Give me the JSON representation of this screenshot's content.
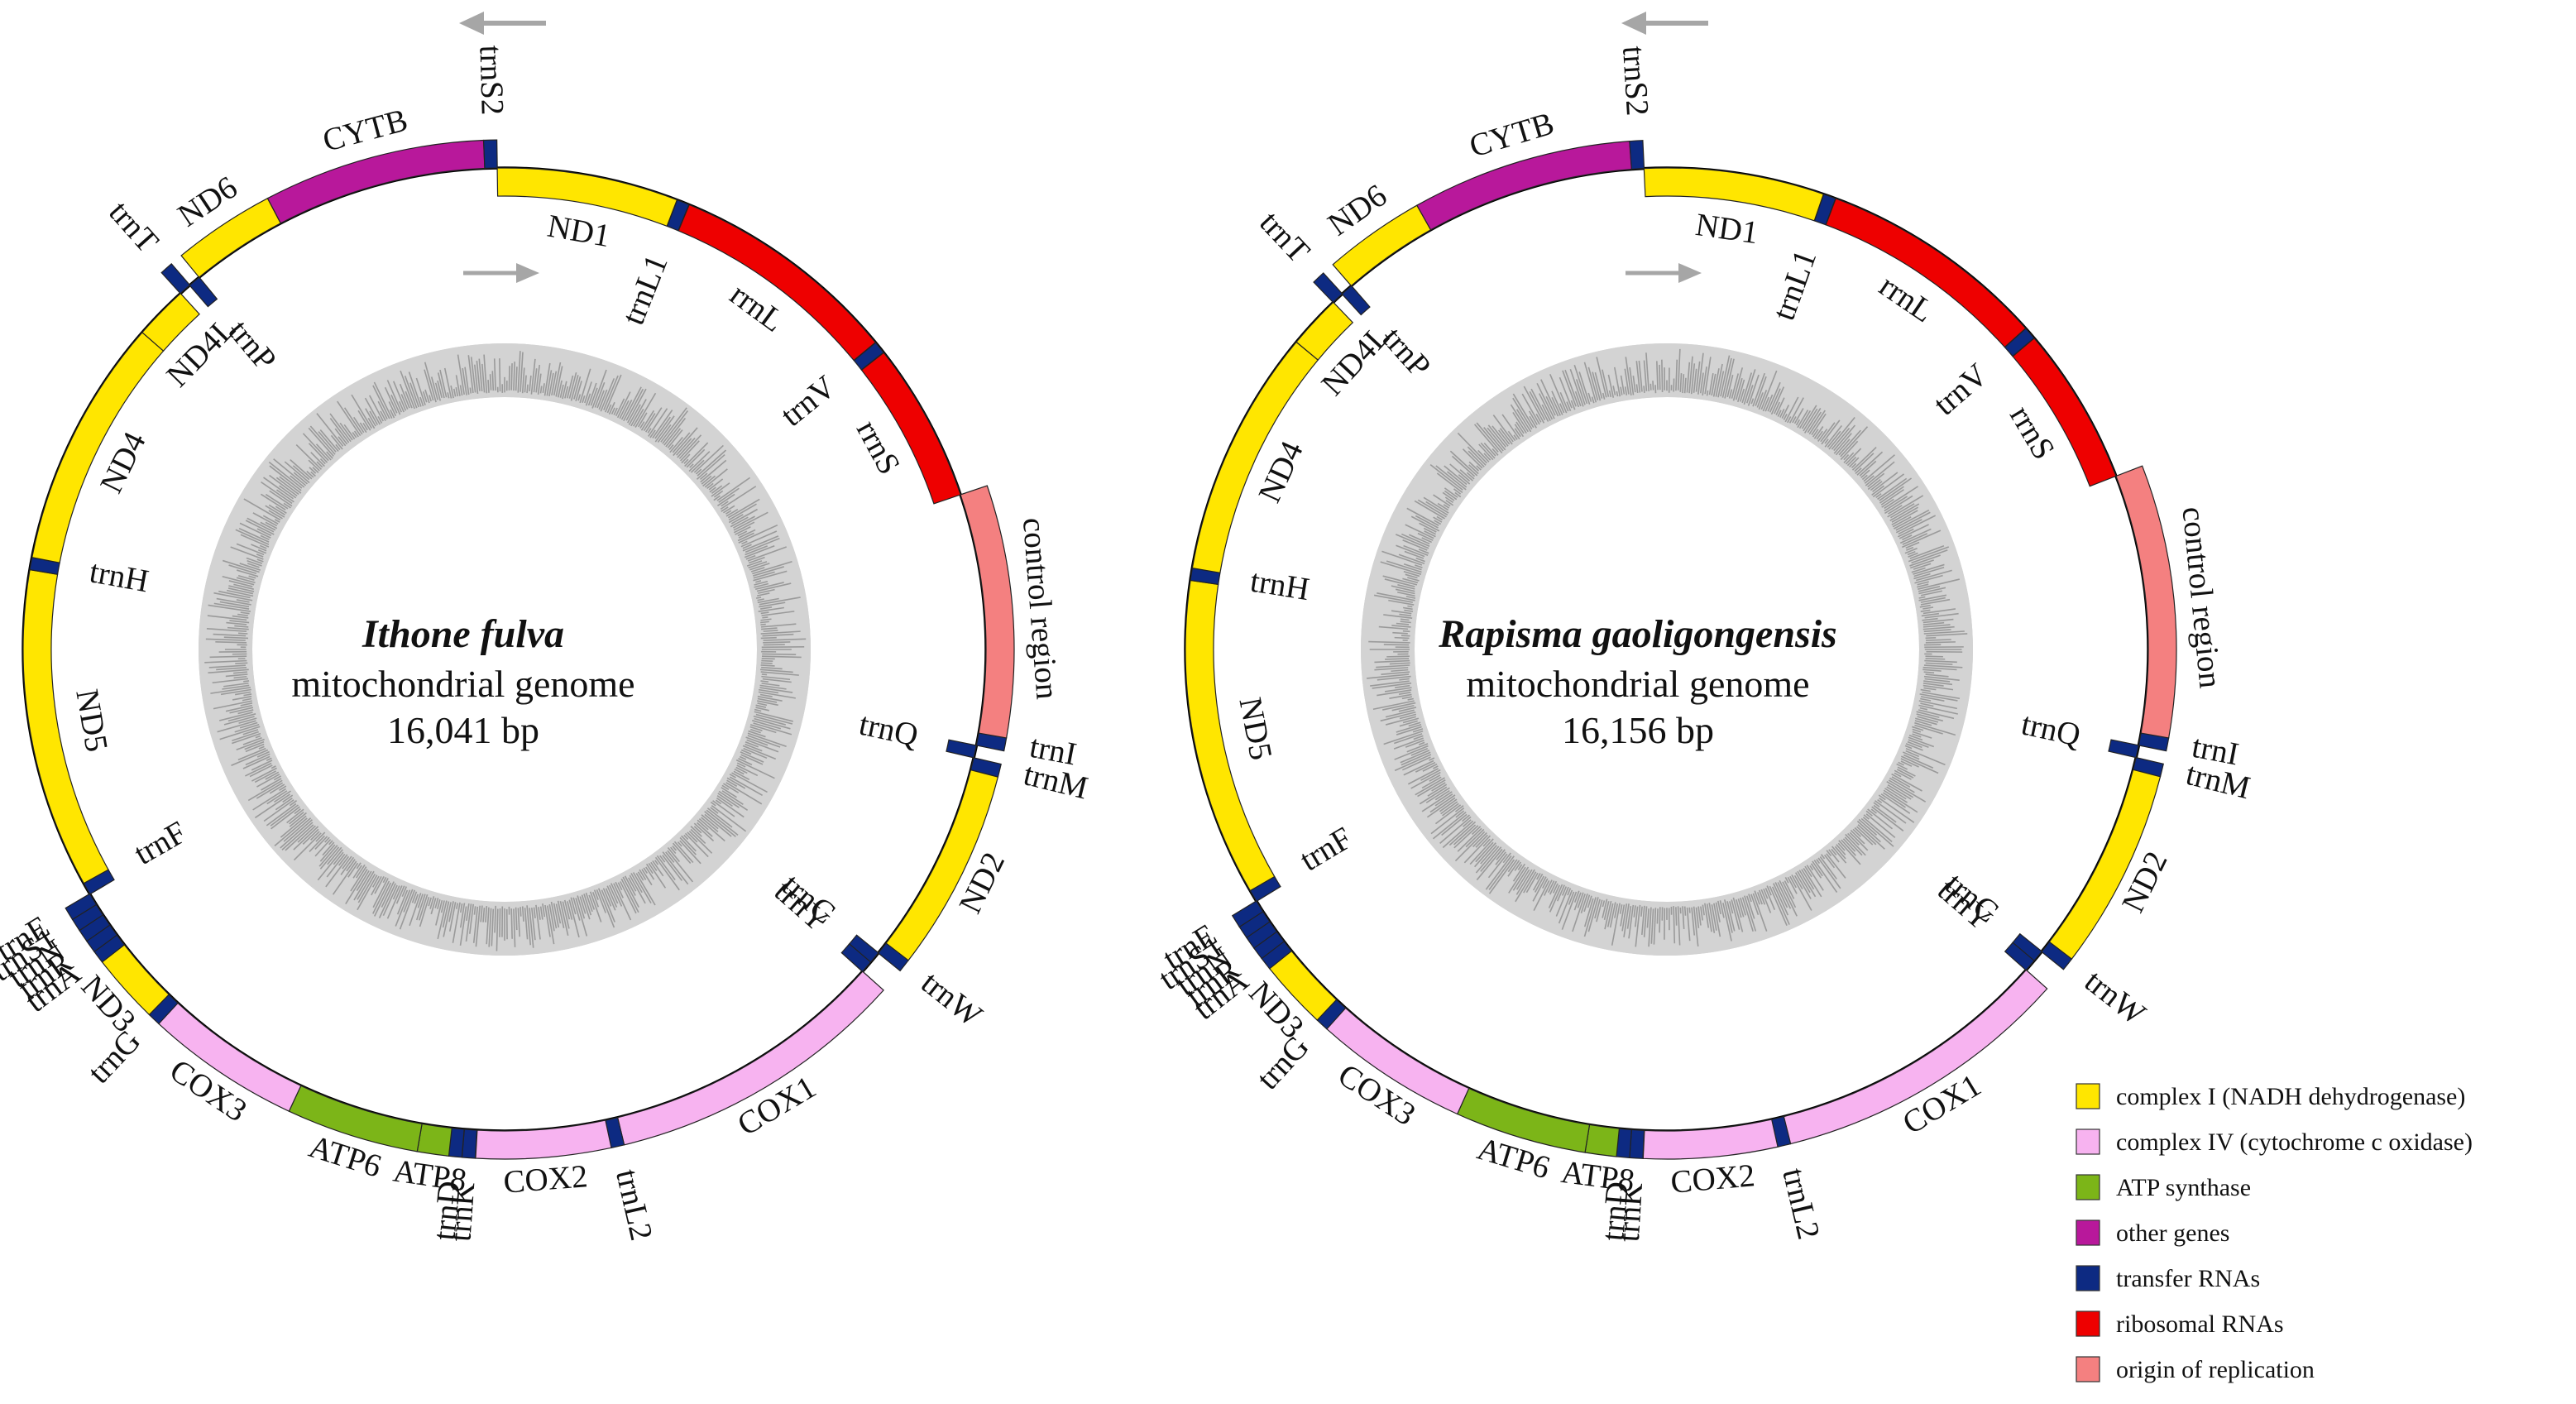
{
  "colors": {
    "complex1": "#FFE600",
    "complex4": "#F7B3F0",
    "atp": "#7CB518",
    "other": "#B8189B",
    "trna": "#0D2A82",
    "rrna": "#EE0000",
    "origin": "#F48080",
    "gc_bg": "#D3D3D3",
    "gc_bar": "#9A9A9A",
    "arrow": "#A6A6A6"
  },
  "genomes": [
    {
      "species": "Ithone fulva",
      "subtitle": "mitochondrial genome",
      "size_label": "16,041 bp",
      "length_bp": 16041,
      "features": [
        {
          "name": "trnI",
          "cat": "trna",
          "start": 0,
          "end": 66,
          "strand": "+",
          "label": "trnI"
        },
        {
          "name": "trnQ",
          "cat": "trna",
          "start": 66,
          "end": 134,
          "strand": "-",
          "label": "trnQ"
        },
        {
          "name": "trnM",
          "cat": "trna",
          "start": 134,
          "end": 200,
          "strand": "+",
          "label": "trnM"
        },
        {
          "name": "ND2",
          "cat": "complex1",
          "start": 200,
          "end": 1230,
          "strand": "+",
          "label": "ND2"
        },
        {
          "name": "trnW",
          "cat": "trna",
          "start": 1230,
          "end": 1296,
          "strand": "+",
          "label": "trnW"
        },
        {
          "name": "trnC",
          "cat": "trna",
          "start": 1296,
          "end": 1360,
          "strand": "-",
          "label": "trnC"
        },
        {
          "name": "trnY",
          "cat": "trna",
          "start": 1360,
          "end": 1424,
          "strand": "-",
          "label": "trnY"
        },
        {
          "name": "COX1",
          "cat": "complex4",
          "start": 1424,
          "end": 2960,
          "strand": "+",
          "label": "COX1"
        },
        {
          "name": "trnL2",
          "cat": "trna",
          "start": 2960,
          "end": 3026,
          "strand": "+",
          "label": "trnL2"
        },
        {
          "name": "COX2",
          "cat": "complex4",
          "start": 3026,
          "end": 3710,
          "strand": "+",
          "label": "COX2"
        },
        {
          "name": "trnK",
          "cat": "trna",
          "start": 3710,
          "end": 3780,
          "strand": "+",
          "label": "trnK"
        },
        {
          "name": "trnD",
          "cat": "trna",
          "start": 3780,
          "end": 3845,
          "strand": "+",
          "label": "trnD"
        },
        {
          "name": "ATP8",
          "cat": "atp",
          "start": 3845,
          "end": 4005,
          "strand": "+",
          "label": "ATP8"
        },
        {
          "name": "ATP6",
          "cat": "atp",
          "start": 4005,
          "end": 4680,
          "strand": "+",
          "label": "ATP6"
        },
        {
          "name": "COX3",
          "cat": "complex4",
          "start": 4680,
          "end": 5470,
          "strand": "+",
          "label": "COX3"
        },
        {
          "name": "trnG",
          "cat": "trna",
          "start": 5470,
          "end": 5535,
          "strand": "+",
          "label": "trnG"
        },
        {
          "name": "ND3",
          "cat": "complex1",
          "start": 5535,
          "end": 5890,
          "strand": "+",
          "label": "ND3"
        },
        {
          "name": "trnA",
          "cat": "trna",
          "start": 5890,
          "end": 5955,
          "strand": "+",
          "label": "trnA"
        },
        {
          "name": "trnR",
          "cat": "trna",
          "start": 5955,
          "end": 6020,
          "strand": "+",
          "label": "trnR"
        },
        {
          "name": "trnN",
          "cat": "trna",
          "start": 6020,
          "end": 6085,
          "strand": "+",
          "label": "trnN"
        },
        {
          "name": "trnS1",
          "cat": "trna",
          "start": 6085,
          "end": 6150,
          "strand": "+",
          "label": "trnS1"
        },
        {
          "name": "trnE",
          "cat": "trna",
          "start": 6150,
          "end": 6215,
          "strand": "+",
          "label": "trnE"
        },
        {
          "name": "trnF",
          "cat": "trna",
          "start": 6215,
          "end": 6280,
          "strand": "-",
          "label": "trnF"
        },
        {
          "name": "ND5",
          "cat": "complex1",
          "start": 6280,
          "end": 8000,
          "strand": "-",
          "label": "ND5"
        },
        {
          "name": "trnH",
          "cat": "trna",
          "start": 8000,
          "end": 8066,
          "strand": "-",
          "label": "trnH"
        },
        {
          "name": "ND4",
          "cat": "complex1",
          "start": 8066,
          "end": 9410,
          "strand": "-",
          "label": "ND4"
        },
        {
          "name": "ND4L",
          "cat": "complex1",
          "start": 9410,
          "end": 9700,
          "strand": "-",
          "label": "ND4L"
        },
        {
          "name": "trnT",
          "cat": "trna",
          "start": 9700,
          "end": 9765,
          "strand": "+",
          "label": "trnT"
        },
        {
          "name": "trnP",
          "cat": "trna",
          "start": 9765,
          "end": 9830,
          "strand": "-",
          "label": "trnP"
        },
        {
          "name": "ND6",
          "cat": "complex1",
          "start": 9830,
          "end": 10350,
          "strand": "+",
          "label": "ND6"
        },
        {
          "name": "CYTB",
          "cat": "other",
          "start": 10350,
          "end": 11480,
          "strand": "+",
          "label": "CYTB"
        },
        {
          "name": "trnS2",
          "cat": "trna",
          "start": 11480,
          "end": 11546,
          "strand": "+",
          "label": "trnS2"
        },
        {
          "name": "ND1",
          "cat": "complex1",
          "start": 11546,
          "end": 12520,
          "strand": "-",
          "label": "ND1"
        },
        {
          "name": "trnL1",
          "cat": "trna",
          "start": 12520,
          "end": 12590,
          "strand": "-",
          "label": "trnL1"
        },
        {
          "name": "rrnL",
          "cat": "rrna",
          "start": 12590,
          "end": 13830,
          "strand": "-",
          "label": "rrnL"
        },
        {
          "name": "trnV",
          "cat": "trna",
          "start": 13830,
          "end": 13900,
          "strand": "-",
          "label": "trnV"
        },
        {
          "name": "rrnS",
          "cat": "rrna",
          "start": 13900,
          "end": 14760,
          "strand": "-",
          "label": "rrnS"
        },
        {
          "name": "control",
          "cat": "origin",
          "start": 14760,
          "end": 16041,
          "strand": "+",
          "label": "control region"
        }
      ]
    },
    {
      "species": "Rapisma gaoligongensis",
      "subtitle": "mitochondrial genome",
      "size_label": "16,156 bp",
      "length_bp": 16156,
      "features": [
        {
          "name": "trnI",
          "cat": "trna",
          "start": 0,
          "end": 66,
          "strand": "+",
          "label": "trnI"
        },
        {
          "name": "trnQ",
          "cat": "trna",
          "start": 66,
          "end": 134,
          "strand": "-",
          "label": "trnQ"
        },
        {
          "name": "trnM",
          "cat": "trna",
          "start": 134,
          "end": 200,
          "strand": "+",
          "label": "trnM"
        },
        {
          "name": "ND2",
          "cat": "complex1",
          "start": 200,
          "end": 1230,
          "strand": "+",
          "label": "ND2"
        },
        {
          "name": "trnW",
          "cat": "trna",
          "start": 1230,
          "end": 1296,
          "strand": "+",
          "label": "trnW"
        },
        {
          "name": "trnC",
          "cat": "trna",
          "start": 1296,
          "end": 1360,
          "strand": "-",
          "label": "trnC"
        },
        {
          "name": "trnY",
          "cat": "trna",
          "start": 1360,
          "end": 1424,
          "strand": "-",
          "label": "trnY"
        },
        {
          "name": "COX1",
          "cat": "complex4",
          "start": 1424,
          "end": 2960,
          "strand": "+",
          "label": "COX1"
        },
        {
          "name": "trnL2",
          "cat": "trna",
          "start": 2960,
          "end": 3026,
          "strand": "+",
          "label": "trnL2"
        },
        {
          "name": "COX2",
          "cat": "complex4",
          "start": 3026,
          "end": 3710,
          "strand": "+",
          "label": "COX2"
        },
        {
          "name": "trnK",
          "cat": "trna",
          "start": 3710,
          "end": 3780,
          "strand": "+",
          "label": "trnK"
        },
        {
          "name": "trnD",
          "cat": "trna",
          "start": 3780,
          "end": 3845,
          "strand": "+",
          "label": "trnD"
        },
        {
          "name": "ATP8",
          "cat": "atp",
          "start": 3845,
          "end": 4005,
          "strand": "+",
          "label": "ATP8"
        },
        {
          "name": "ATP6",
          "cat": "atp",
          "start": 4005,
          "end": 4680,
          "strand": "+",
          "label": "ATP6"
        },
        {
          "name": "COX3",
          "cat": "complex4",
          "start": 4680,
          "end": 5470,
          "strand": "+",
          "label": "COX3"
        },
        {
          "name": "trnG",
          "cat": "trna",
          "start": 5470,
          "end": 5535,
          "strand": "+",
          "label": "trnG"
        },
        {
          "name": "ND3",
          "cat": "complex1",
          "start": 5535,
          "end": 5890,
          "strand": "+",
          "label": "ND3"
        },
        {
          "name": "trnA",
          "cat": "trna",
          "start": 5890,
          "end": 5955,
          "strand": "+",
          "label": "trnA"
        },
        {
          "name": "trnR",
          "cat": "trna",
          "start": 5955,
          "end": 6020,
          "strand": "+",
          "label": "trnR"
        },
        {
          "name": "trnN",
          "cat": "trna",
          "start": 6020,
          "end": 6085,
          "strand": "+",
          "label": "trnN"
        },
        {
          "name": "trnS1",
          "cat": "trna",
          "start": 6085,
          "end": 6150,
          "strand": "+",
          "label": "trnS1"
        },
        {
          "name": "trnE",
          "cat": "trna",
          "start": 6150,
          "end": 6215,
          "strand": "+",
          "label": "trnE"
        },
        {
          "name": "trnF",
          "cat": "trna",
          "start": 6215,
          "end": 6280,
          "strand": "-",
          "label": "trnF"
        },
        {
          "name": "ND5",
          "cat": "complex1",
          "start": 6280,
          "end": 8000,
          "strand": "-",
          "label": "ND5"
        },
        {
          "name": "trnH",
          "cat": "trna",
          "start": 8000,
          "end": 8066,
          "strand": "-",
          "label": "trnH"
        },
        {
          "name": "ND4",
          "cat": "complex1",
          "start": 8066,
          "end": 9410,
          "strand": "-",
          "label": "ND4"
        },
        {
          "name": "ND4L",
          "cat": "complex1",
          "start": 9410,
          "end": 9700,
          "strand": "-",
          "label": "ND4L"
        },
        {
          "name": "trnT",
          "cat": "trna",
          "start": 9700,
          "end": 9765,
          "strand": "+",
          "label": "trnT"
        },
        {
          "name": "trnP",
          "cat": "trna",
          "start": 9765,
          "end": 9830,
          "strand": "-",
          "label": "trnP"
        },
        {
          "name": "ND6",
          "cat": "complex1",
          "start": 9830,
          "end": 10350,
          "strand": "+",
          "label": "ND6"
        },
        {
          "name": "CYTB",
          "cat": "other",
          "start": 10350,
          "end": 11480,
          "strand": "+",
          "label": "CYTB"
        },
        {
          "name": "trnS2",
          "cat": "trna",
          "start": 11480,
          "end": 11546,
          "strand": "+",
          "label": "trnS2"
        },
        {
          "name": "ND1",
          "cat": "complex1",
          "start": 11546,
          "end": 12520,
          "strand": "-",
          "label": "ND1"
        },
        {
          "name": "trnL1",
          "cat": "trna",
          "start": 12520,
          "end": 12590,
          "strand": "-",
          "label": "trnL1"
        },
        {
          "name": "rrnL",
          "cat": "rrna",
          "start": 12590,
          "end": 13830,
          "strand": "-",
          "label": "rrnL"
        },
        {
          "name": "trnV",
          "cat": "trna",
          "start": 13830,
          "end": 13900,
          "strand": "-",
          "label": "trnV"
        },
        {
          "name": "rrnS",
          "cat": "rrna",
          "start": 13900,
          "end": 14760,
          "strand": "-",
          "label": "rrnS"
        },
        {
          "name": "control",
          "cat": "origin",
          "start": 14760,
          "end": 16156,
          "strand": "+",
          "label": "control region"
        }
      ]
    }
  ],
  "legend": [
    {
      "cat": "complex1",
      "label": "complex I (NADH dehydrogenase)"
    },
    {
      "cat": "complex4",
      "label": "complex IV (cytochrome c oxidase)"
    },
    {
      "cat": "atp",
      "label": "ATP synthase"
    },
    {
      "cat": "other",
      "label": "other genes"
    },
    {
      "cat": "trna",
      "label": "transfer RNAs"
    },
    {
      "cat": "rrna",
      "label": "ribosomal RNAs"
    },
    {
      "cat": "origin",
      "label": "origin of replication"
    }
  ]
}
